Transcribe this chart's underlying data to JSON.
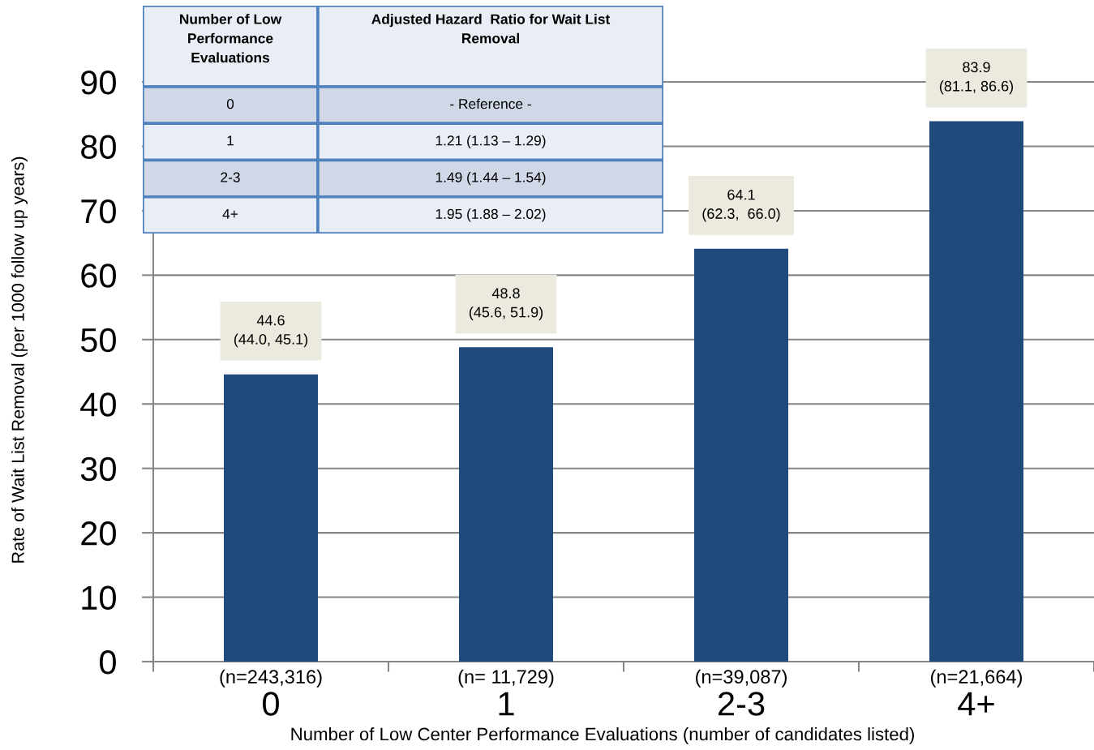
{
  "chart_data": {
    "type": "bar",
    "xlabel": "Number of Low Center Performance Evaluations (number of candidates listed)",
    "ylabel": "Rate of Wait List Removal (per 1000 follow up years)",
    "categories": [
      "(n=243,316)\n0",
      "(n= 11,729)\n1",
      "(n=39,087)\n2-3",
      "(n=21,664)\n4+"
    ],
    "values": [
      44.6,
      48.8,
      64.1,
      83.9
    ],
    "color": "#214a7c",
    "value_labels": [
      "44.6\n(44.0, 45.1)",
      "48.8\n(45.6, 51.9)",
      "64.1\n(62.3,  66.0)",
      "83.9\n(81.1, 86.6)"
    ],
    "ylim": [
      0,
      100
    ],
    "yticks": [
      0,
      10,
      20,
      30,
      40,
      50,
      60,
      70,
      80,
      90
    ],
    "grid": "y",
    "annotations": [
      "Number of Low\nPerformance\nEvaluations",
      "Adjusted Hazard  Ratio for Wait List\nRemoval",
      "0",
      "- Reference -",
      "1",
      "1.21 (1.13 – 1.29)",
      "2-3",
      "1.49 (1.44 – 1.54)",
      "4+",
      "1.95 (1.88 – 2.02)"
    ]
  }
}
